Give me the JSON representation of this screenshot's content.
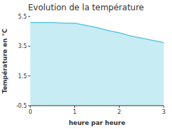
{
  "chart_data": {
    "type": "area",
    "title": "Evolution de la température",
    "x_label": "heure par heure",
    "y_label": "Température en °C",
    "x": [
      0,
      0.25,
      0.5,
      0.75,
      1.0,
      1.25,
      1.5,
      1.75,
      2.0,
      2.25,
      2.5,
      2.75,
      3.0
    ],
    "values": [
      5.1,
      5.1,
      5.1,
      5.05,
      5.05,
      4.9,
      4.75,
      4.55,
      4.4,
      4.2,
      4.05,
      3.9,
      3.75
    ],
    "color": "#60c8e0",
    "xlim": [
      0,
      3
    ],
    "ylim": [
      -0.5,
      5.5
    ],
    "xticks": [
      0,
      1,
      2,
      3
    ],
    "yticks": [
      -0.5,
      1.5,
      3.5,
      5.5
    ],
    "grid": false
  }
}
